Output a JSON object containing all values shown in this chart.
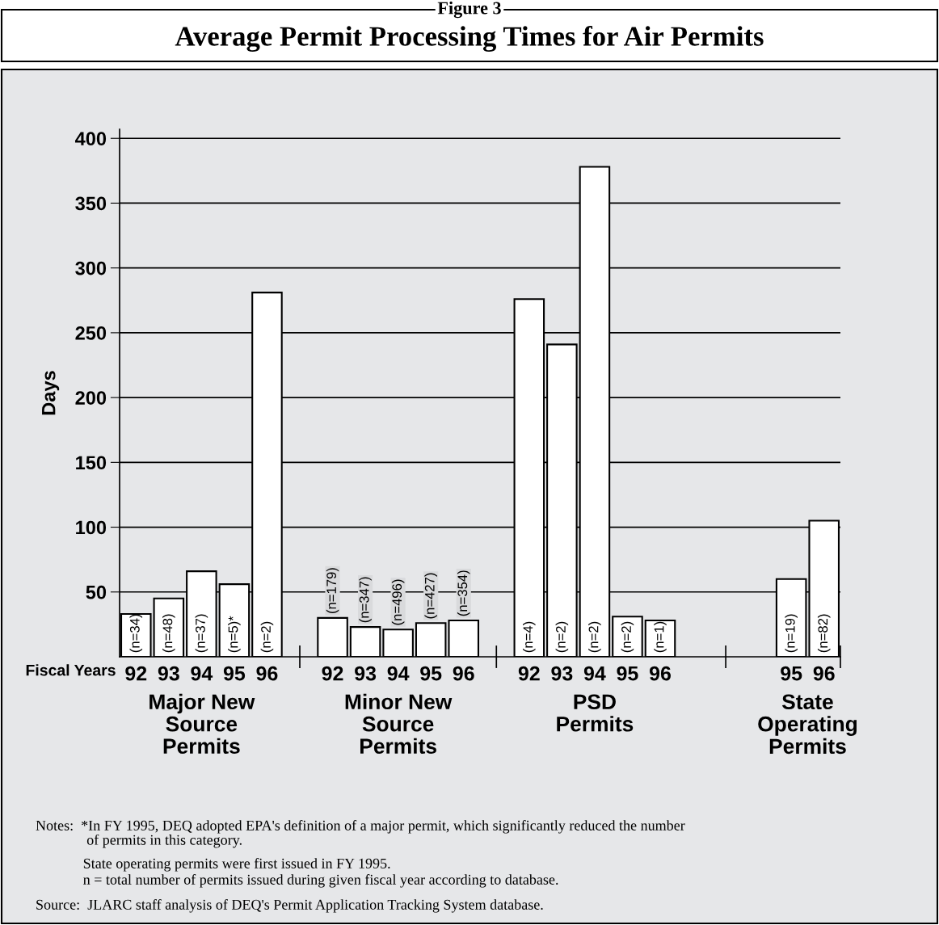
{
  "chart_data": {
    "type": "bar",
    "title": "Figure 3",
    "subtitle": "Average Permit Processing Times for Air Permits",
    "ylabel": "Days",
    "xlabel": "Fiscal Years",
    "categories": [
      "92",
      "93",
      "94",
      "95",
      "96",
      null,
      "92",
      "93",
      "94",
      "95",
      "96",
      null,
      "92",
      "93",
      "94",
      "95",
      "96",
      null,
      null,
      null,
      "95",
      "96"
    ],
    "values": [
      33,
      45,
      66,
      56,
      281,
      null,
      30,
      23,
      21,
      26,
      28,
      null,
      276,
      241,
      378,
      31,
      28,
      null,
      null,
      null,
      60,
      105
    ],
    "color": "#ffffff",
    "ylim": [
      0,
      407
    ],
    "yticks": [
      50,
      100,
      150,
      200,
      250,
      300,
      350,
      400
    ],
    "grid": "y",
    "annotations": [
      "Major New\nSource\nPermits",
      "Minor New\nSource\nPermits",
      "PSD\nPermits",
      "State\nOperating\nPermits",
      "(n=34)",
      "(n=48)",
      "(n=37)",
      "(n=5)*",
      "(n=2)",
      "(n=179)",
      "(n=347)",
      "(n=496)",
      "(n=427)",
      "(n=354)",
      "(n=4)",
      "(n=2)",
      "(n=2)",
      "(n=2)",
      "(n=1)",
      "(n=19)",
      "(n=82)",
      "Notes:  *In FY 1995, DEQ adopted EPA's definition of a major permit, which significantly reduced the number\n              of permits in this category.",
      "             State operating permits were first issued in FY 1995.",
      "             n = total number of permits issued during given fiscal year according to database.",
      "Source:  JLARC staff analysis of DEQ's Permit Application Tracking System database."
    ]
  }
}
